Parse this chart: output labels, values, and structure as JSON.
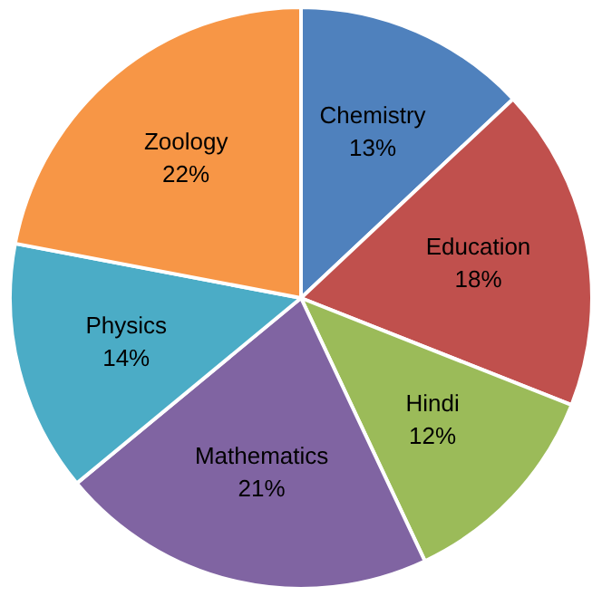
{
  "chart_data": {
    "type": "pie",
    "categories": [
      "Chemistry",
      "Education",
      "Hindi",
      "Mathematics",
      "Physics",
      "Zoology"
    ],
    "values": [
      13,
      18,
      12,
      21,
      14,
      22
    ],
    "value_labels": [
      "13%",
      "18%",
      "12%",
      "21%",
      "14%",
      "22%"
    ],
    "colors": [
      "#4f81bd",
      "#c0504d",
      "#9bbb59",
      "#8064a2",
      "#4bacc6",
      "#f79646"
    ],
    "legend": false
  }
}
